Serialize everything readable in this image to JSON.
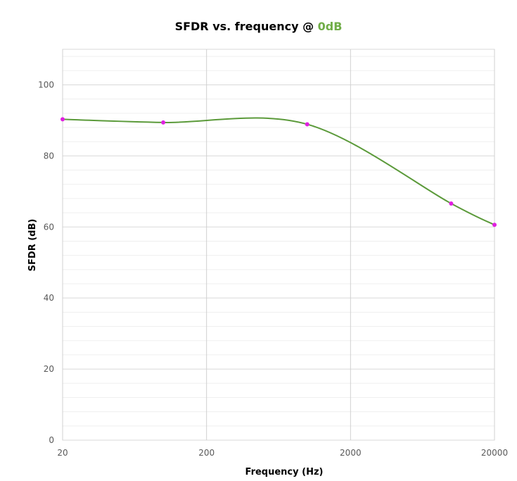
{
  "chart_data": {
    "type": "line",
    "title": {
      "main": "SFDR vs. frequency @ ",
      "highlight": "0dB",
      "highlight_color": "#70ad47"
    },
    "xlabel": "Frequency (Hz)",
    "ylabel": "SFDR (dB)",
    "x_scale": "log",
    "xlim": [
      20,
      20000
    ],
    "ylim": [
      0,
      110
    ],
    "x_ticks": [
      {
        "value": 20,
        "label": "20"
      },
      {
        "value": 200,
        "label": "200"
      },
      {
        "value": 2000,
        "label": "2000"
      },
      {
        "value": 20000,
        "label": "20000"
      }
    ],
    "y_ticks": [
      {
        "value": 0,
        "label": "0"
      },
      {
        "value": 20,
        "label": "20"
      },
      {
        "value": 40,
        "label": "40"
      },
      {
        "value": 60,
        "label": "60"
      },
      {
        "value": 80,
        "label": "80"
      },
      {
        "value": 100,
        "label": "100"
      }
    ],
    "y_minor_step": 4,
    "grid": true,
    "legend": false,
    "series": [
      {
        "line_color": "#5b9a3a",
        "marker_color": "#e020e0",
        "smooth": true,
        "points": [
          {
            "x": 20,
            "y": 90.3
          },
          {
            "x": 100,
            "y": 89.4
          },
          {
            "x": 1000,
            "y": 88.9
          },
          {
            "x": 10000,
            "y": 66.6
          },
          {
            "x": 20000,
            "y": 60.6
          }
        ]
      }
    ]
  }
}
